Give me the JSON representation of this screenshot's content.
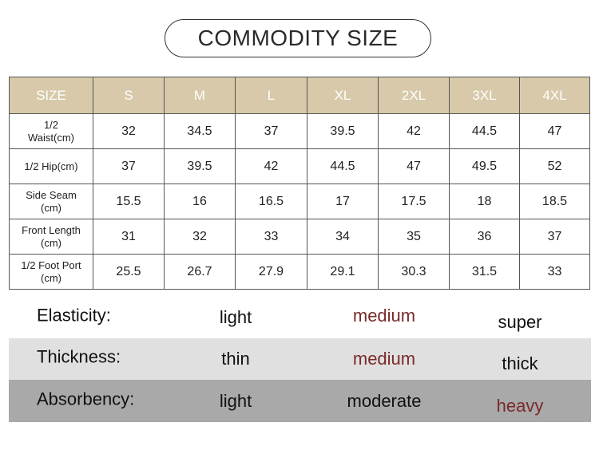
{
  "title": "COMMODITY SIZE",
  "size_table": {
    "header": [
      "SIZE",
      "S",
      "M",
      "L",
      "XL",
      "2XL",
      "3XL",
      "4XL"
    ],
    "rows": [
      [
        "1/2\nWaist(cm)",
        "32",
        "34.5",
        "37",
        "39.5",
        "42",
        "44.5",
        "47"
      ],
      [
        "1/2 Hip(cm)",
        "37",
        "39.5",
        "42",
        "44.5",
        "47",
        "49.5",
        "52"
      ],
      [
        "Side Seam\n(cm)",
        "15.5",
        "16",
        "16.5",
        "17",
        "17.5",
        "18",
        "18.5"
      ],
      [
        "Front Length\n(cm)",
        "31",
        "32",
        "33",
        "34",
        "35",
        "36",
        "37"
      ],
      [
        "1/2 Foot Port\n(cm)",
        "25.5",
        "26.7",
        "27.9",
        "29.1",
        "30.3",
        "31.5",
        "33"
      ]
    ]
  },
  "attributes": [
    {
      "label": "Elasticity:",
      "options": [
        "light",
        "medium",
        "super"
      ]
    },
    {
      "label": "Thickness:",
      "options": [
        "thin",
        "medium",
        "thick"
      ]
    },
    {
      "label": "Absorbency:",
      "options": [
        "light",
        "moderate",
        "heavy"
      ]
    }
  ]
}
